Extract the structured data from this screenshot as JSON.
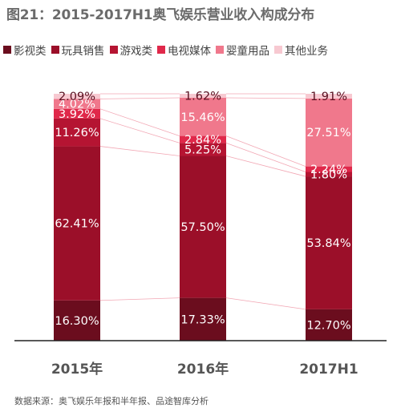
{
  "title": "图21：2015-2017H1奥飞娱乐营业收入构成分布",
  "source": "数据来源：奥飞娱乐年报和半年报、品途智库分析",
  "chart_data": {
    "type": "bar",
    "stacked": true,
    "percent": true,
    "categories": [
      "2015年",
      "2016年",
      "2017H1"
    ],
    "series": [
      {
        "name": "影视类",
        "color": "#6b0d1e",
        "values": [
          16.3,
          17.33,
          12.7
        ]
      },
      {
        "name": "玩具销售",
        "color": "#9b0f29",
        "values": [
          62.41,
          57.5,
          53.84
        ]
      },
      {
        "name": "游戏类",
        "color": "#b51432",
        "values": [
          11.26,
          5.25,
          1.8
        ]
      },
      {
        "name": "电视媒体",
        "color": "#e0284a",
        "values": [
          3.92,
          2.84,
          2.24
        ]
      },
      {
        "name": "婴童用品",
        "color": "#f0788c",
        "values": [
          4.02,
          15.46,
          27.51
        ]
      },
      {
        "name": "其他业务",
        "color": "#f7c9d1",
        "values": [
          2.09,
          1.62,
          1.91
        ]
      }
    ],
    "value_labels": [
      [
        "16.30%",
        "62.41%",
        "11.26%",
        "3.92%",
        "4.02%",
        "2.09%"
      ],
      [
        "17.33%",
        "57.50%",
        "5.25%",
        "2.84%",
        "15.46%",
        "1.62%"
      ],
      [
        "12.70%",
        "53.84%",
        "1.80%",
        "2.24%",
        "27.51%",
        "1.91%"
      ]
    ],
    "ylim": [
      0,
      100
    ],
    "legend": "top",
    "grid": false
  }
}
